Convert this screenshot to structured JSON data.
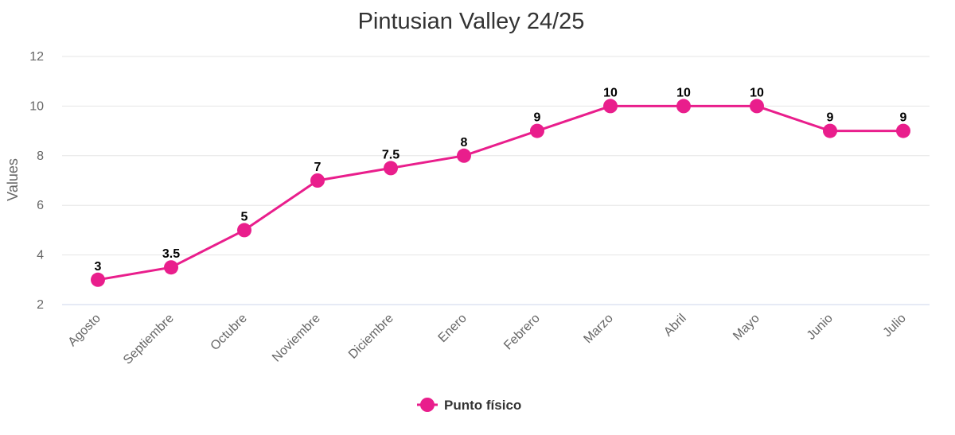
{
  "chart_data": {
    "type": "line",
    "title": "Pintusian Valley 24/25",
    "xlabel": "",
    "ylabel": "Values",
    "ylim": [
      2,
      12
    ],
    "yticks": [
      2,
      4,
      6,
      8,
      10,
      12
    ],
    "grid": true,
    "legend_position": "bottom",
    "categories": [
      "Agosto",
      "Septiembre",
      "Octubre",
      "Noviembre",
      "Diciembre",
      "Enero",
      "Febrero",
      "Marzo",
      "Abril",
      "Mayo",
      "Junio",
      "Julio"
    ],
    "series": [
      {
        "name": "Punto físico",
        "color": "#e91e8c",
        "values": [
          3,
          3.5,
          5,
          7,
          7.5,
          8,
          9,
          10,
          10,
          10,
          9,
          9
        ]
      }
    ]
  }
}
